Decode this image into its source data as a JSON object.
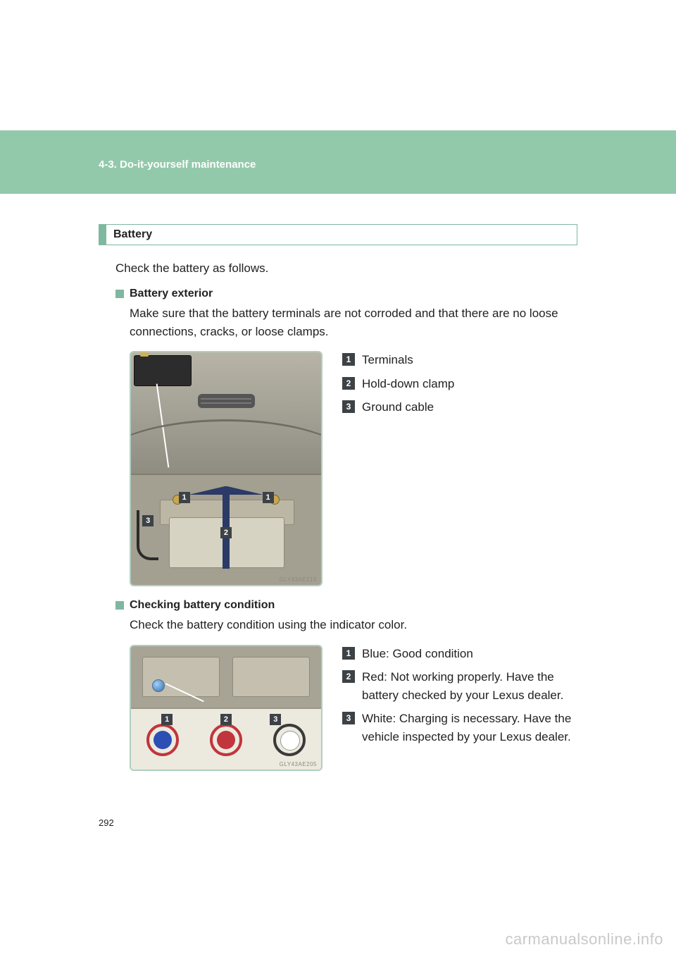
{
  "header": {
    "breadcrumb": "4-3. Do-it-yourself maintenance"
  },
  "section": {
    "title": "Battery",
    "intro": "Check the battery as follows."
  },
  "exterior": {
    "title": "Battery exterior",
    "desc": "Make sure that the battery terminals are not corroded and that there are no loose connections, cracks, or loose clamps.",
    "items": [
      {
        "n": "1",
        "label": "Terminals"
      },
      {
        "n": "2",
        "label": "Hold-down clamp"
      },
      {
        "n": "3",
        "label": "Ground cable"
      }
    ],
    "fig_code": "GLY43AE215"
  },
  "condition": {
    "title": "Checking battery condition",
    "desc": "Check the battery condition using the indicator color.",
    "items": [
      {
        "n": "1",
        "label": "Blue: Good condition"
      },
      {
        "n": "2",
        "label": "Red: Not working properly. Have the battery checked by your Lexus dealer."
      },
      {
        "n": "3",
        "label": "White: Charging is necessary. Have the vehicle inspected by your Lexus dealer."
      }
    ],
    "fig_code": "GLY43AE205"
  },
  "page_number": "292",
  "watermark": "carmanualsonline.info",
  "colors": {
    "band": "#93c9ab",
    "accent": "#7fb7a0",
    "badge": "#3d4246",
    "ind_blue": "#2b4fb5",
    "ind_red": "#c1353d",
    "ind_white": "#ffffff"
  }
}
